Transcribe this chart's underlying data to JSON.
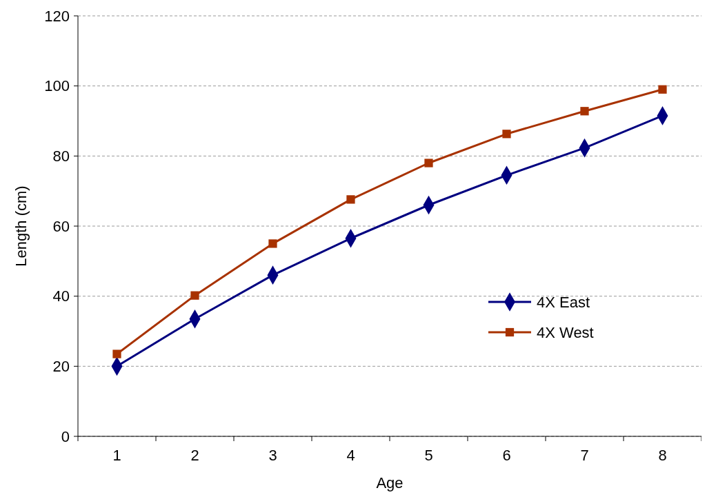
{
  "chart_data": {
    "type": "line",
    "xlabel": "Age",
    "ylabel": "Length (cm)",
    "categories": [
      "1",
      "2",
      "3",
      "4",
      "5",
      "6",
      "7",
      "8"
    ],
    "series": [
      {
        "name": "4X East",
        "color": "#000080",
        "marker": "diamond",
        "values": [
          20,
          33.5,
          46,
          56.5,
          66,
          74.5,
          82.3,
          91.5
        ]
      },
      {
        "name": "4X West",
        "color": "#a83200",
        "marker": "square",
        "values": [
          23.5,
          40.2,
          55,
          67.6,
          78,
          86.3,
          92.8,
          99
        ]
      }
    ],
    "ylim": [
      0,
      120
    ],
    "yticks": [
      0,
      20,
      40,
      60,
      80,
      100,
      120
    ],
    "grid": "y",
    "legend": "right",
    "line_style": "solid"
  }
}
